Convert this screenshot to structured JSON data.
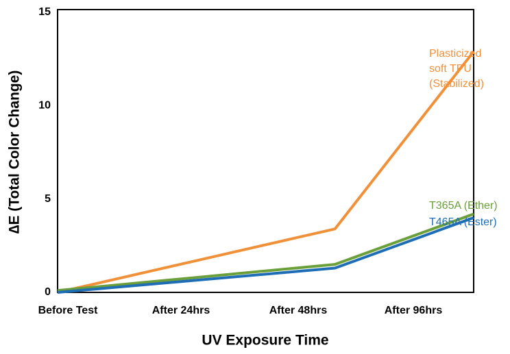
{
  "chart_data": {
    "type": "line",
    "x_label": "UV Exposure Time",
    "y_label": "∆E (Total Color Change)",
    "categories": [
      "Before Test",
      "After 24hrs",
      "After 48hrs",
      "After 96hrs"
    ],
    "series": [
      {
        "name": "Plasticized\nsoft TPU\n(Stabilized)",
        "color": "#f0913a",
        "values": [
          0,
          1.7,
          3.4,
          12.9
        ]
      },
      {
        "name": "T365A (Ether)",
        "color": "#6a9f3a",
        "values": [
          0.1,
          0.8,
          1.5,
          4.2
        ]
      },
      {
        "name": "T465A (Ester)",
        "color": "#1f6db5",
        "values": [
          0,
          0.65,
          1.3,
          4.0
        ]
      }
    ],
    "ylim": [
      0,
      15
    ],
    "yticks": [
      0,
      5,
      10,
      15
    ],
    "grid": false
  }
}
